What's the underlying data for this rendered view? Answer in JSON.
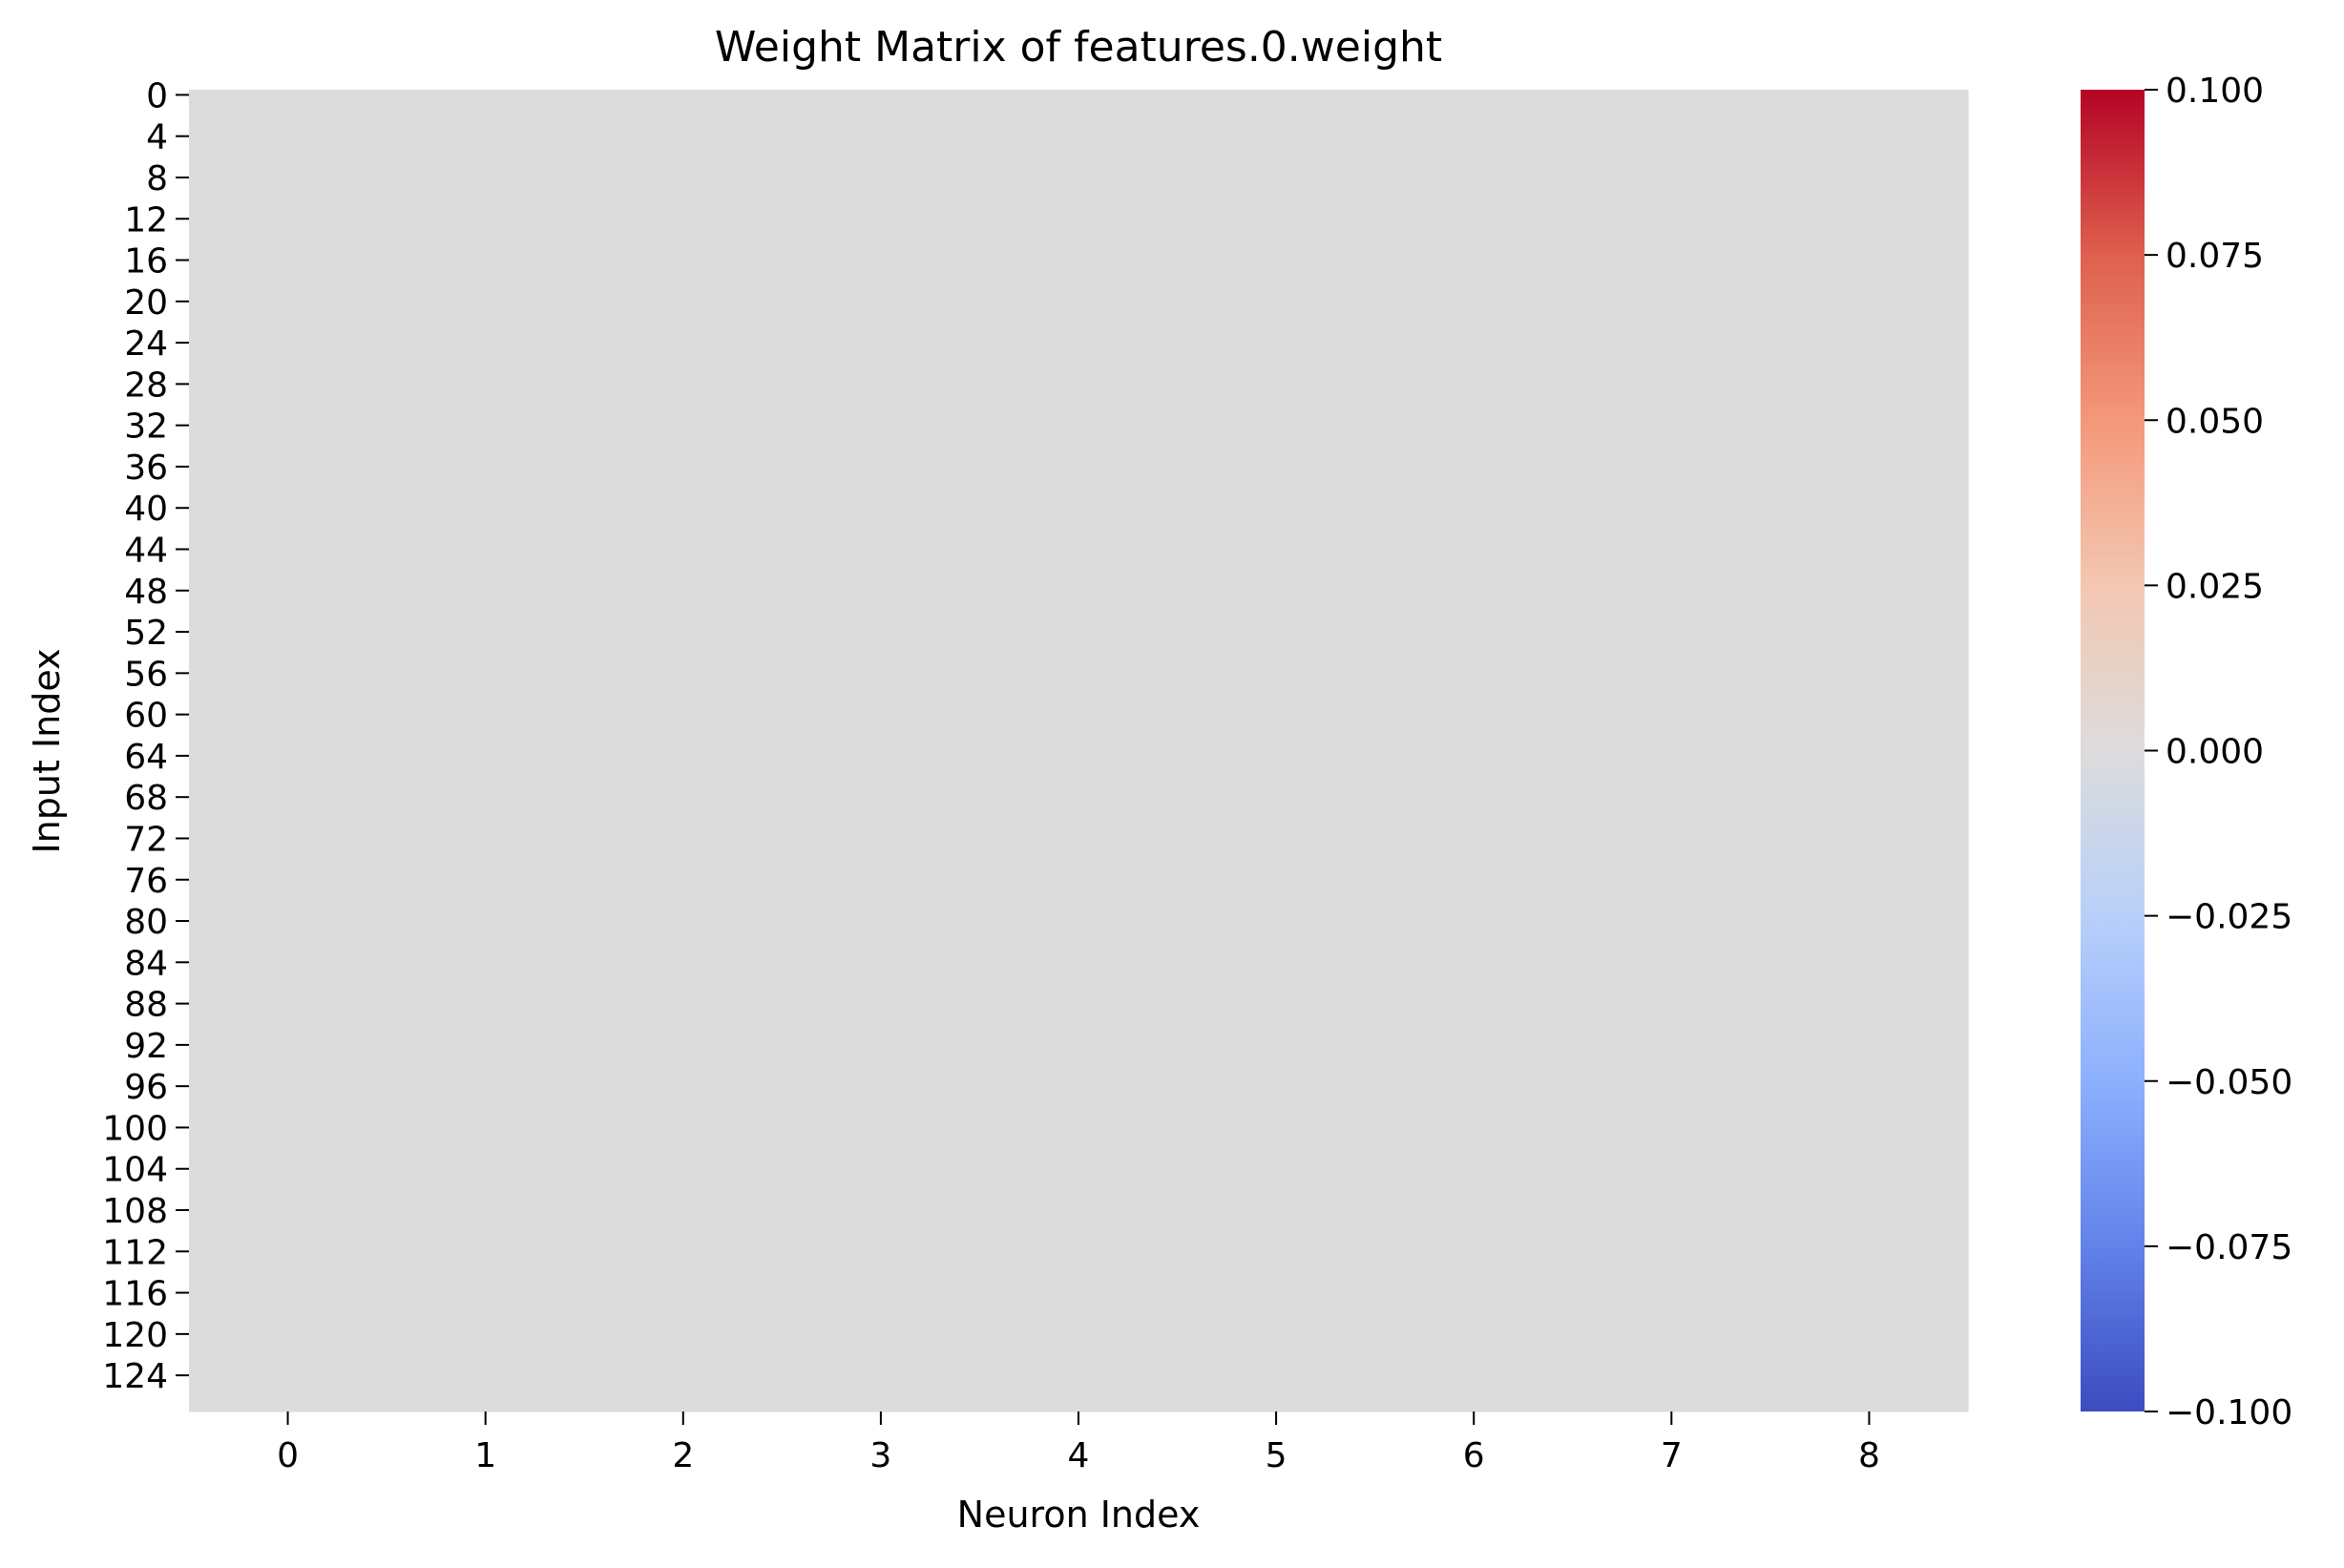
{
  "chart_data": {
    "type": "heatmap",
    "title": "Weight Matrix of features.0.weight",
    "xlabel": "Neuron Index",
    "ylabel": "Input Index",
    "rows": 128,
    "cols": 9,
    "fill_value": 0.0,
    "x_ticks": [
      "0",
      "1",
      "2",
      "3",
      "4",
      "5",
      "6",
      "7",
      "8"
    ],
    "y_ticks": [
      "0",
      "4",
      "8",
      "12",
      "16",
      "20",
      "24",
      "28",
      "32",
      "36",
      "40",
      "44",
      "48",
      "52",
      "56",
      "60",
      "64",
      "68",
      "72",
      "76",
      "80",
      "84",
      "88",
      "92",
      "96",
      "100",
      "104",
      "108",
      "112",
      "116",
      "120",
      "124"
    ],
    "colorbar": {
      "colormap": "coolwarm",
      "vmin": -0.1,
      "vmax": 0.1,
      "ticks": [
        "−0.100",
        "−0.075",
        "−0.050",
        "−0.025",
        "0.000",
        "0.025",
        "0.050",
        "0.075",
        "0.100"
      ],
      "tick_values": [
        -0.1,
        -0.075,
        -0.05,
        -0.025,
        0.0,
        0.025,
        0.05,
        0.075,
        0.1
      ],
      "colors": [
        "#3b4cc0",
        "#6282ea",
        "#8db0fe",
        "#b8d0f9",
        "#dddcdc",
        "#f3c7b1",
        "#f4987a",
        "#de604d",
        "#b40426"
      ]
    }
  }
}
